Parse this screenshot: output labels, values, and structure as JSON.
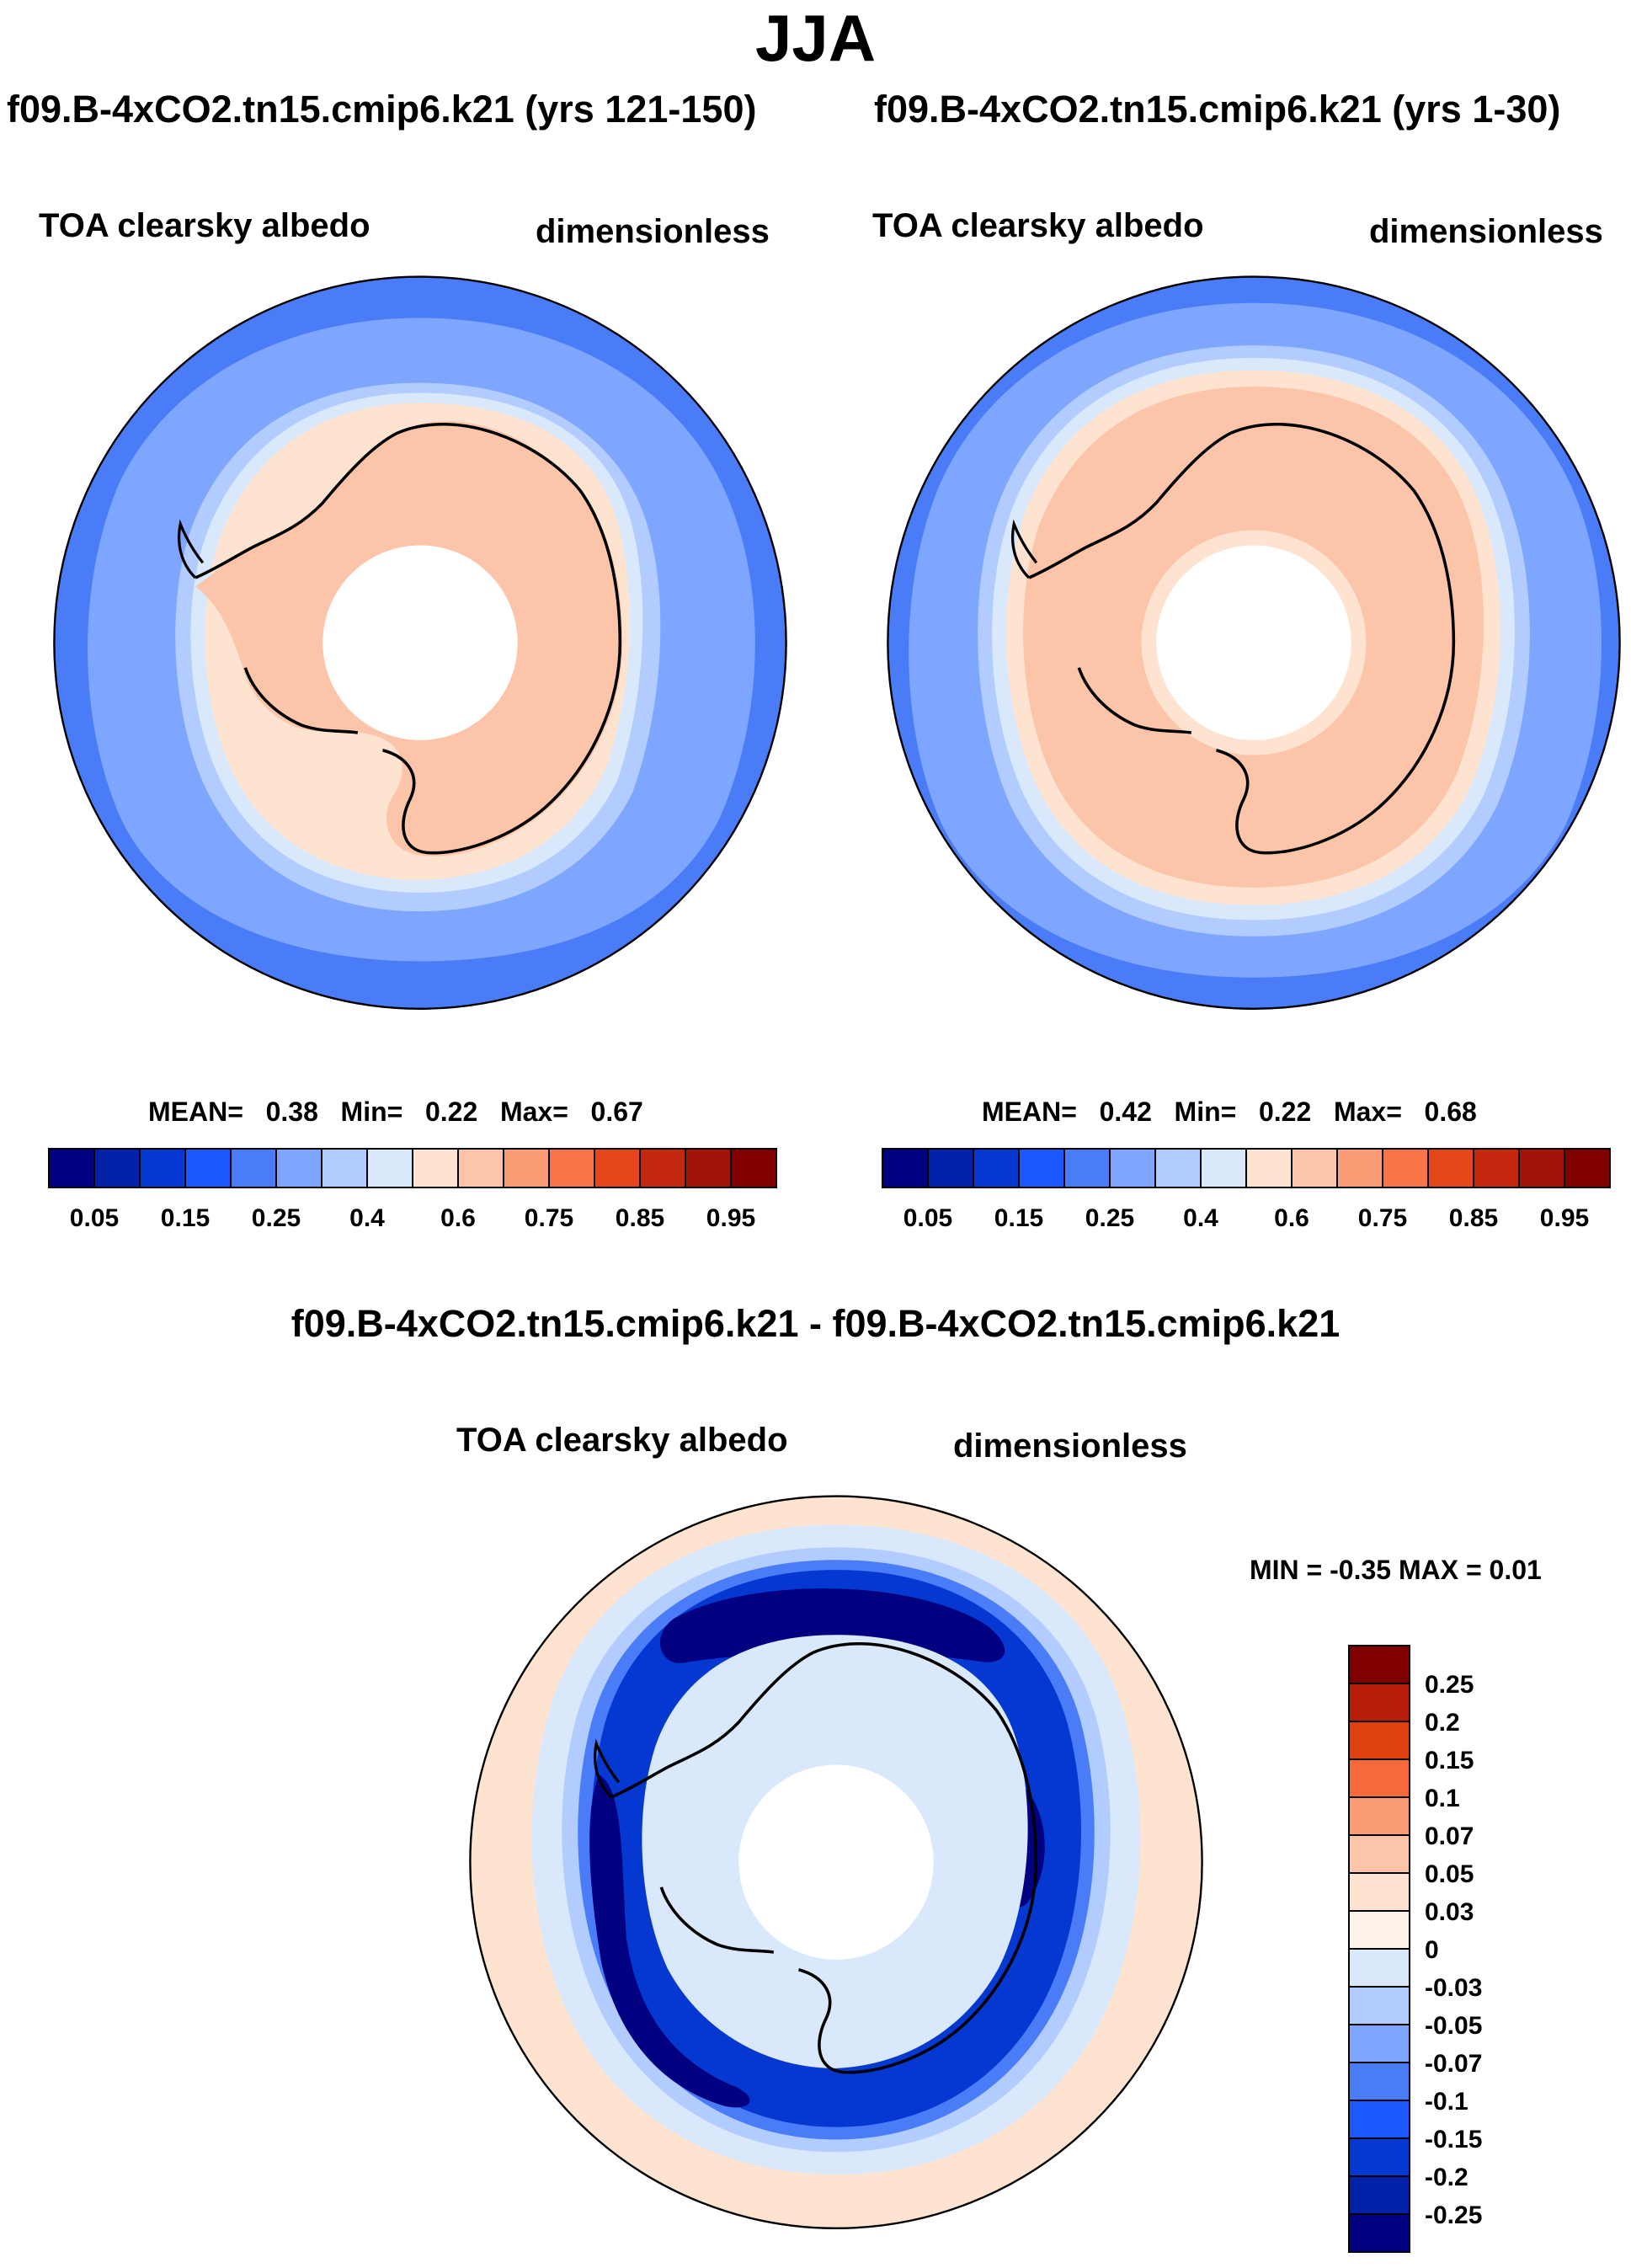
{
  "title": "JJA",
  "panels": [
    {
      "case": "f09.B-4xCO2.tn15.cmip6.k21 (yrs 121-150)",
      "variable": "TOA clearsky albedo",
      "units": "dimensionless",
      "stats": {
        "mean_label": "MEAN=",
        "mean": "0.38",
        "min_label": "Min=",
        "min": "0.22",
        "max_label": "Max=",
        "max": "0.67"
      }
    },
    {
      "case": "f09.B-4xCO2.tn15.cmip6.k21 (yrs 1-30)",
      "variable": "TOA clearsky albedo",
      "units": "dimensionless",
      "stats": {
        "mean_label": "MEAN=",
        "mean": "0.42",
        "min_label": "Min=",
        "min": "0.22",
        "max_label": "Max=",
        "max": "0.68"
      }
    }
  ],
  "difference": {
    "title": "f09.B-4xCO2.tn15.cmip6.k21 - f09.B-4xCO2.tn15.cmip6.k21",
    "variable": "TOA clearsky albedo",
    "units": "dimensionless",
    "minmax": "MIN =  -0.35 MAX =   0.01"
  },
  "colorbar_main": {
    "levels": [
      "0.05",
      "0.15",
      "0.25",
      "0.4",
      "0.6",
      "0.75",
      "0.85",
      "0.95"
    ],
    "colors": [
      "#000080",
      "#0220a8",
      "#0538d0",
      "#1b58ff",
      "#4a7cf8",
      "#7ea6ff",
      "#b2ccff",
      "#dae8fc",
      "#fde3d0",
      "#fcc4a8",
      "#fa9d76",
      "#f77549",
      "#e6471a",
      "#c4280f",
      "#a31408",
      "#800000"
    ]
  },
  "colorbar_diff": {
    "levels": [
      "0.25",
      "0.2",
      "0.15",
      "0.1",
      "0.07",
      "0.05",
      "0.03",
      "0",
      "-0.03",
      "-0.05",
      "-0.07",
      "-0.1",
      "-0.15",
      "-0.2",
      "-0.25"
    ],
    "colors": [
      "#800000",
      "#b51c0a",
      "#e0400f",
      "#f66a39",
      "#fa9d76",
      "#fcc4a8",
      "#fde3d0",
      "#fdf3e9",
      "#dae8fc",
      "#b2ccff",
      "#7ea6ff",
      "#4a7cf8",
      "#1b58ff",
      "#0538d0",
      "#0220a8",
      "#000080"
    ]
  },
  "map_colors": {
    "ocean_far": "#4a7cf8",
    "ocean_mid": "#7ea6ff",
    "ocean_near": "#b2ccff",
    "ice_edge": "#dae8fc",
    "sea_ice": "#fde3d0",
    "land": "#fcc4a8",
    "diff_background": "#fde3d0",
    "diff_weak": "#dae8fc",
    "diff_light": "#b2ccff",
    "diff_mid": "#4a7cf8",
    "diff_strong": "#0538d0",
    "diff_deep": "#000080"
  }
}
